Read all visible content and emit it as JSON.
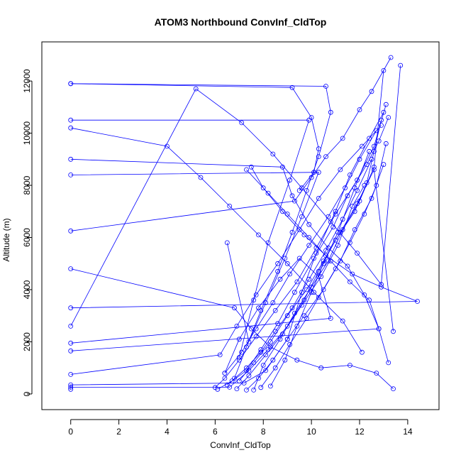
{
  "chart_data": {
    "type": "line",
    "title": "ATOM3 Northbound ConvInf_CldTop",
    "xlabel": "ConvInf_CldTop",
    "ylabel": "Altitude (m)",
    "xlim": [
      -1.2,
      15.3
    ],
    "ylim": [
      -600,
      13500
    ],
    "x_ticks": [
      0,
      2,
      4,
      6,
      8,
      10,
      12,
      14
    ],
    "x_tick_labels": [
      "0",
      "2",
      "4",
      "6",
      "8",
      "10",
      "12",
      "14"
    ],
    "y_ticks": [
      0,
      2000,
      4000,
      6000,
      8000,
      10000,
      12000
    ],
    "y_tick_labels": [
      "0",
      "2000",
      "4000",
      "6000",
      "8000",
      "10000",
      "12000"
    ],
    "grid": false,
    "legend": "none",
    "series_color": "#0000ff",
    "marker": "open-circle",
    "series": [
      {
        "x": [
          0.0,
          0.0,
          7.2,
          8.1,
          9.0,
          9.6,
          10.2,
          11.0,
          11.6,
          12.4,
          13.0
        ],
        "y": [
          180,
          350,
          420,
          900,
          2100,
          3900,
          5400,
          7000,
          8400,
          9800,
          10800
        ]
      },
      {
        "x": [
          12.9,
          12.6,
          12.3,
          11.8,
          11.0,
          10.3,
          9.7,
          9.0,
          8.2,
          7.4,
          6.6,
          0.0
        ],
        "y": [
          10500,
          9300,
          8100,
          7000,
          5900,
          4700,
          3600,
          2600,
          1700,
          900,
          260,
          260
        ]
      },
      {
        "x": [
          0.0,
          10.6,
          10.8,
          10.3,
          9.8,
          9.2,
          8.6,
          7.9,
          7.3,
          6.8
        ],
        "y": [
          11900,
          11800,
          10800,
          9100,
          7800,
          6200,
          4700,
          3200,
          1800,
          600
        ]
      },
      {
        "x": [
          0.0,
          9.9,
          9.1,
          8.2,
          7.6,
          7.0
        ],
        "y": [
          10500,
          10500,
          8200,
          5800,
          3600,
          1400
        ]
      },
      {
        "x": [
          0.0,
          8.8,
          9.2,
          9.9,
          10.7,
          11.5,
          12.2,
          12.8,
          13.2
        ],
        "y": [
          9000,
          8700,
          7600,
          6500,
          5600,
          4900,
          3800,
          2500,
          1200
        ]
      },
      {
        "x": [
          0.0,
          14.4,
          12.9,
          11.7,
          10.6,
          9.7,
          8.8,
          8.0,
          7.5
        ],
        "y": [
          3300,
          3550,
          4100,
          4600,
          5300,
          6100,
          7000,
          7900,
          8700
        ]
      },
      {
        "x": [
          0.0,
          9.3,
          10.0,
          10.6,
          11.3,
          12.0,
          12.5,
          13.3
        ],
        "y": [
          6250,
          7400,
          8300,
          9100,
          9800,
          10900,
          11600,
          12900
        ]
      },
      {
        "x": [
          0.0,
          6.8,
          7.5,
          8.3,
          9.4,
          10.4,
          11.6,
          12.7,
          13.4
        ],
        "y": [
          4800,
          3300,
          2500,
          1800,
          1300,
          1000,
          1100,
          800,
          200
        ]
      },
      {
        "x": [
          0.0,
          6.2,
          6.9,
          7.7,
          8.6,
          9.5,
          10.3,
          11.2,
          12.1,
          12.9
        ],
        "y": [
          750,
          1500,
          2600,
          3800,
          5000,
          6300,
          7500,
          8600,
          9500,
          10300
        ]
      },
      {
        "x": [
          0.0,
          10.3,
          9.6,
          8.9,
          8.1,
          7.4,
          6.5
        ],
        "y": [
          8400,
          8500,
          6800,
          5200,
          3500,
          2000,
          5800
        ]
      },
      {
        "x": [
          0.0,
          12.8,
          12.4,
          11.6,
          10.8,
          9.9,
          9.0,
          8.2,
          7.3
        ],
        "y": [
          1650,
          2500,
          3600,
          4300,
          5100,
          6000,
          6900,
          7700,
          8600
        ]
      },
      {
        "x": [
          0.0,
          5.2,
          7.1,
          8.4,
          9.6,
          10.8,
          11.9,
          12.9,
          13.7
        ],
        "y": [
          2600,
          11700,
          10400,
          9200,
          7900,
          6600,
          5400,
          4200,
          12600
        ]
      },
      {
        "x": [
          0.0,
          4.0,
          5.4,
          6.6,
          7.8,
          9.0,
          10.1,
          11.3,
          12.1
        ],
        "y": [
          10200,
          9500,
          8300,
          7200,
          6100,
          5000,
          3900,
          2800,
          1600
        ]
      },
      {
        "x": [
          0.0,
          10.8,
          10.3,
          9.5,
          8.7,
          7.8,
          7.0,
          6.4
        ],
        "y": [
          1950,
          2900,
          4500,
          5200,
          4400,
          3300,
          2100,
          800
        ]
      },
      {
        "x": [
          6.0,
          6.4,
          7.0,
          7.7,
          8.5,
          9.4,
          10.2,
          11.0,
          11.9,
          12.6,
          13.1
        ],
        "y": [
          250,
          600,
          1300,
          2200,
          3200,
          4300,
          5600,
          6900,
          8200,
          9500,
          11100
        ]
      },
      {
        "x": [
          6.5,
          7.3,
          7.9,
          8.6,
          9.3,
          10.1,
          10.9,
          11.5,
          12.3,
          12.8,
          13.2
        ],
        "y": [
          350,
          900,
          1700,
          2700,
          3900,
          5200,
          6400,
          7600,
          8800,
          9700,
          10600
        ]
      },
      {
        "x": [
          7.6,
          8.0,
          8.7,
          9.3,
          10.0,
          10.7,
          11.3,
          12.0,
          12.6,
          13.0
        ],
        "y": [
          150,
          1100,
          2100,
          3100,
          4100,
          5100,
          6300,
          7400,
          8700,
          12400
        ]
      },
      {
        "x": [
          6.9,
          7.4,
          8.1,
          8.8,
          9.6,
          10.4,
          11.1,
          11.7,
          12.2
        ],
        "y": [
          200,
          700,
          1500,
          2300,
          3400,
          4500,
          5700,
          7200,
          8000
        ]
      },
      {
        "x": [
          7.9,
          8.5,
          9.1,
          9.8,
          10.3,
          11.0,
          11.6,
          12.2,
          12.7,
          13.1
        ],
        "y": [
          250,
          1000,
          1900,
          2900,
          3700,
          4800,
          5800,
          6900,
          8000,
          9600
        ]
      },
      {
        "x": [
          6.1,
          6.7,
          7.3,
          7.9,
          8.5,
          9.2,
          9.9,
          10.6,
          11.3,
          11.9,
          12.5
        ],
        "y": [
          180,
          500,
          1000,
          1600,
          2400,
          3300,
          4400,
          5500,
          6700,
          7800,
          9000
        ]
      },
      {
        "x": [
          8.3,
          8.9,
          9.4,
          10.0,
          10.5,
          11.1,
          11.8,
          12.4
        ],
        "y": [
          300,
          1300,
          2600,
          3900,
          5000,
          6200,
          7900,
          9300
        ]
      },
      {
        "x": [
          7.0,
          7.6,
          8.3,
          9.0,
          9.8,
          10.5,
          11.2,
          11.9,
          12.6,
          13.4
        ],
        "y": [
          500,
          1200,
          2000,
          3000,
          4000,
          5100,
          6200,
          7300,
          8600,
          2400
        ]
      },
      {
        "x": [
          0.0,
          9.2,
          10.0,
          10.3,
          10.1,
          9.5
        ],
        "y": [
          11900,
          11750,
          10600,
          9400,
          8500,
          7800
        ]
      },
      {
        "x": [
          6.4,
          7.1,
          7.7,
          8.4,
          9.1,
          9.9,
          10.7,
          11.4,
          12.0,
          12.7
        ],
        "y": [
          800,
          1600,
          2500,
          3500,
          4600,
          5700,
          6800,
          7900,
          9000,
          10100
        ]
      },
      {
        "x": [
          7.3,
          7.8,
          8.4,
          9.0,
          9.7,
          10.5,
          11.2,
          11.8,
          12.5,
          13.0
        ],
        "y": [
          150,
          600,
          1300,
          2100,
          3000,
          4000,
          5100,
          6300,
          7500,
          8800
        ]
      }
    ]
  }
}
